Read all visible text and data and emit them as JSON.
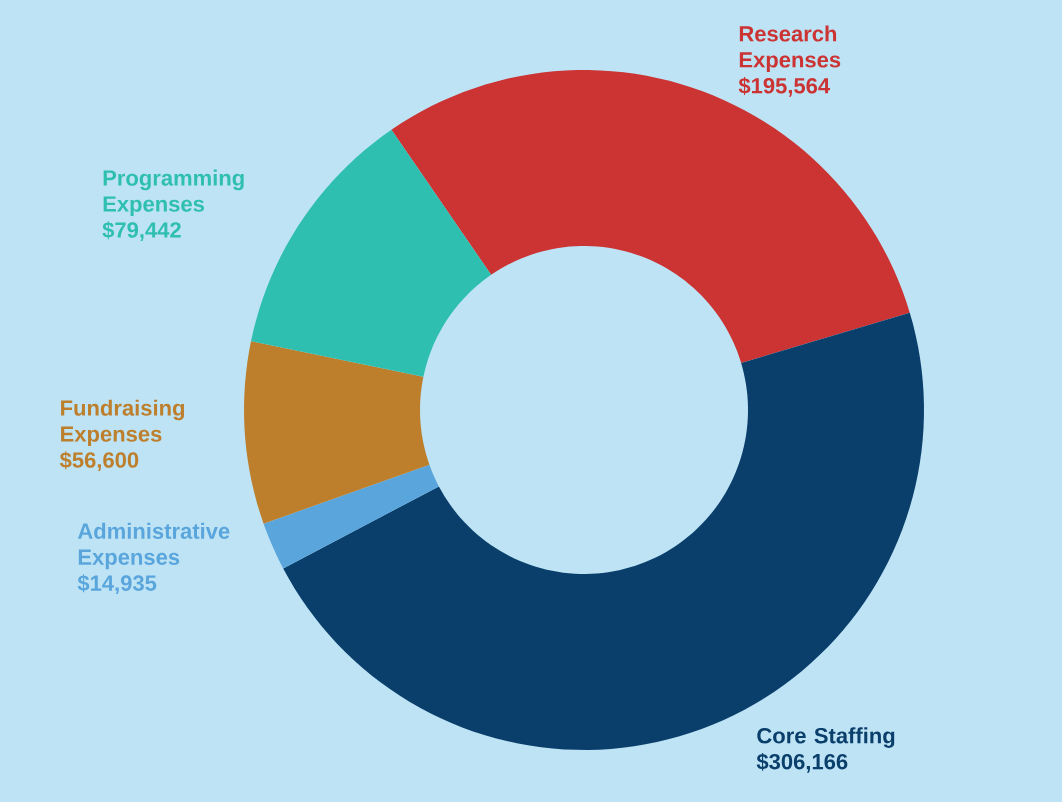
{
  "chart_data": {
    "type": "donut",
    "categories": [
      "Research Expenses",
      "Core Staffing",
      "Administrative Expenses",
      "Fundraising Expenses",
      "Programming Expenses"
    ],
    "values": [
      195564,
      306166,
      14935,
      56600,
      79442
    ],
    "value_labels": [
      "$195,564",
      "$306,166",
      "$14,935",
      "$56,600",
      "$79,442"
    ],
    "colors": [
      "#cc3333",
      "#0b3f6b",
      "#5aa6dc",
      "#bd7f2c",
      "#2fbfb0"
    ]
  }
}
